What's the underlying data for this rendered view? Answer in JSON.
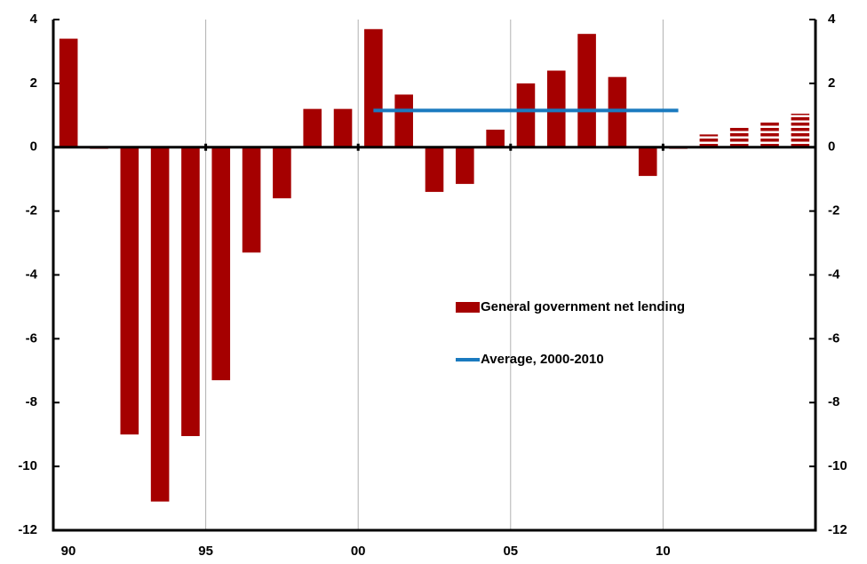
{
  "chart_data": {
    "type": "bar",
    "categories": [
      "90",
      null,
      null,
      null,
      null,
      "95",
      null,
      null,
      null,
      null,
      "00",
      null,
      null,
      null,
      null,
      "05",
      null,
      null,
      null,
      null,
      "10",
      null,
      null,
      null,
      null
    ],
    "series": [
      {
        "name": "General government net lending",
        "type": "bar",
        "color": "#a50000",
        "values": [
          3.4,
          -0.05,
          -9.0,
          -11.1,
          -9.05,
          -7.3,
          -3.3,
          -1.6,
          1.2,
          1.2,
          3.7,
          1.65,
          -1.4,
          -1.15,
          0.55,
          2.0,
          2.4,
          3.55,
          2.2,
          -0.9,
          -0.05,
          0.4,
          0.65,
          0.8,
          1.05
        ],
        "hatched": [
          false,
          false,
          false,
          false,
          false,
          false,
          false,
          false,
          false,
          false,
          false,
          false,
          false,
          false,
          false,
          false,
          false,
          false,
          false,
          false,
          false,
          true,
          true,
          true,
          true
        ]
      },
      {
        "name": "Average, 2000-2010",
        "type": "line",
        "color": "#1a7abf",
        "values": [
          null,
          null,
          null,
          null,
          null,
          null,
          null,
          null,
          null,
          null,
          1.15,
          1.15,
          1.15,
          1.15,
          1.15,
          1.15,
          1.15,
          1.15,
          1.15,
          1.15,
          1.15,
          null,
          null,
          null,
          null
        ]
      }
    ],
    "ylim": [
      -12,
      4
    ],
    "yticks": [
      -12,
      -10,
      -8,
      -6,
      -4,
      -2,
      0,
      2,
      4
    ],
    "y2lim": [
      -12,
      4
    ],
    "y2ticks": [
      -12,
      -10,
      -8,
      -6,
      -4,
      -2,
      0,
      2,
      4
    ],
    "grid": true
  }
}
